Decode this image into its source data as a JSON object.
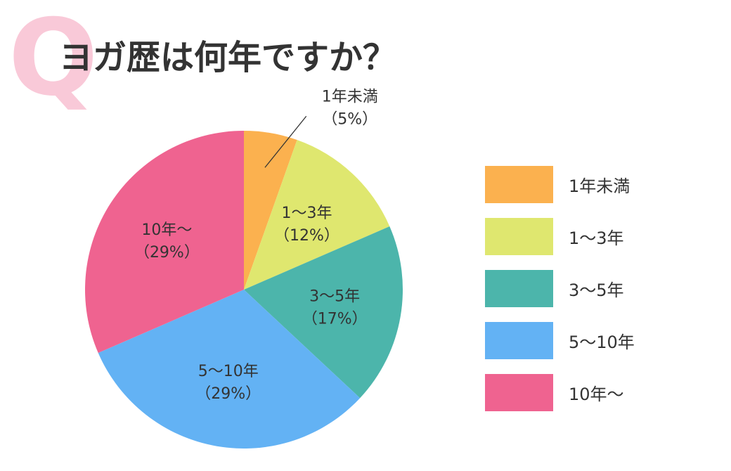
{
  "heading": {
    "q_letter": "Q",
    "title": "ヨガ歴は何年ですか？"
  },
  "chart_data": {
    "type": "pie",
    "title": "ヨガ歴は何年ですか？",
    "start_angle_deg": 0,
    "direction": "clockwise",
    "slices": [
      {
        "label": "1年未満",
        "pct_label": "（5%）",
        "value": 5,
        "color": "#fbb14f",
        "callout": true
      },
      {
        "label": "1〜3年",
        "pct_label": "（12%）",
        "value": 12,
        "color": "#dfe76f",
        "callout": false
      },
      {
        "label": "3〜5年",
        "pct_label": "（17%）",
        "value": 17,
        "color": "#4cb5ab",
        "callout": false
      },
      {
        "label": "5〜10年",
        "pct_label": "（29%）",
        "value": 29,
        "color": "#63b2f4",
        "callout": false
      },
      {
        "label": "10年〜",
        "pct_label": "（29%）",
        "value": 29,
        "color": "#ef6390",
        "callout": false
      }
    ],
    "legend": {
      "position": "right",
      "items": [
        "1年未満",
        "1〜3年",
        "3〜5年",
        "5〜10年",
        "10年〜"
      ]
    }
  }
}
